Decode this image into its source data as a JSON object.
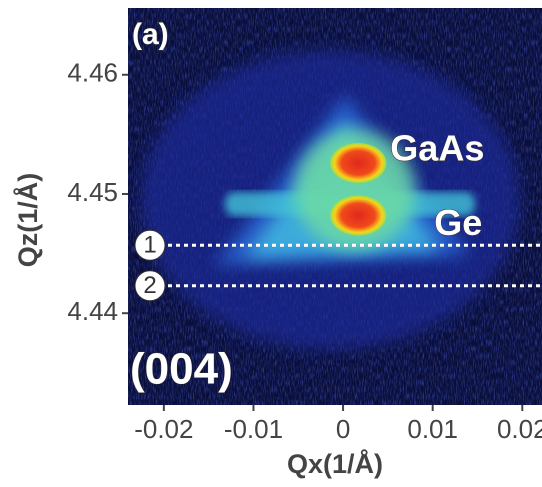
{
  "chart_data": {
    "type": "heatmap",
    "panel_label": "(a)",
    "reflection": "(004)",
    "x_label": "Qx(1/Å)",
    "y_label": "Qz(1/Å)",
    "xlim": [
      -0.024,
      0.0222
    ],
    "ylim": [
      4.4323,
      4.4656
    ],
    "xticks": [
      -0.02,
      -0.01,
      0,
      0.01,
      0.02
    ],
    "yticks": [
      4.44,
      4.45,
      4.46
    ],
    "peaks": [
      {
        "label": "GaAs",
        "x": 0.0017,
        "y": 4.4526
      },
      {
        "label": "Ge",
        "x": 0.0017,
        "y": 4.4482
      }
    ],
    "hlines": [
      {
        "label": "1",
        "y": 4.4457
      },
      {
        "label": "2",
        "y": 4.4423
      }
    ]
  }
}
